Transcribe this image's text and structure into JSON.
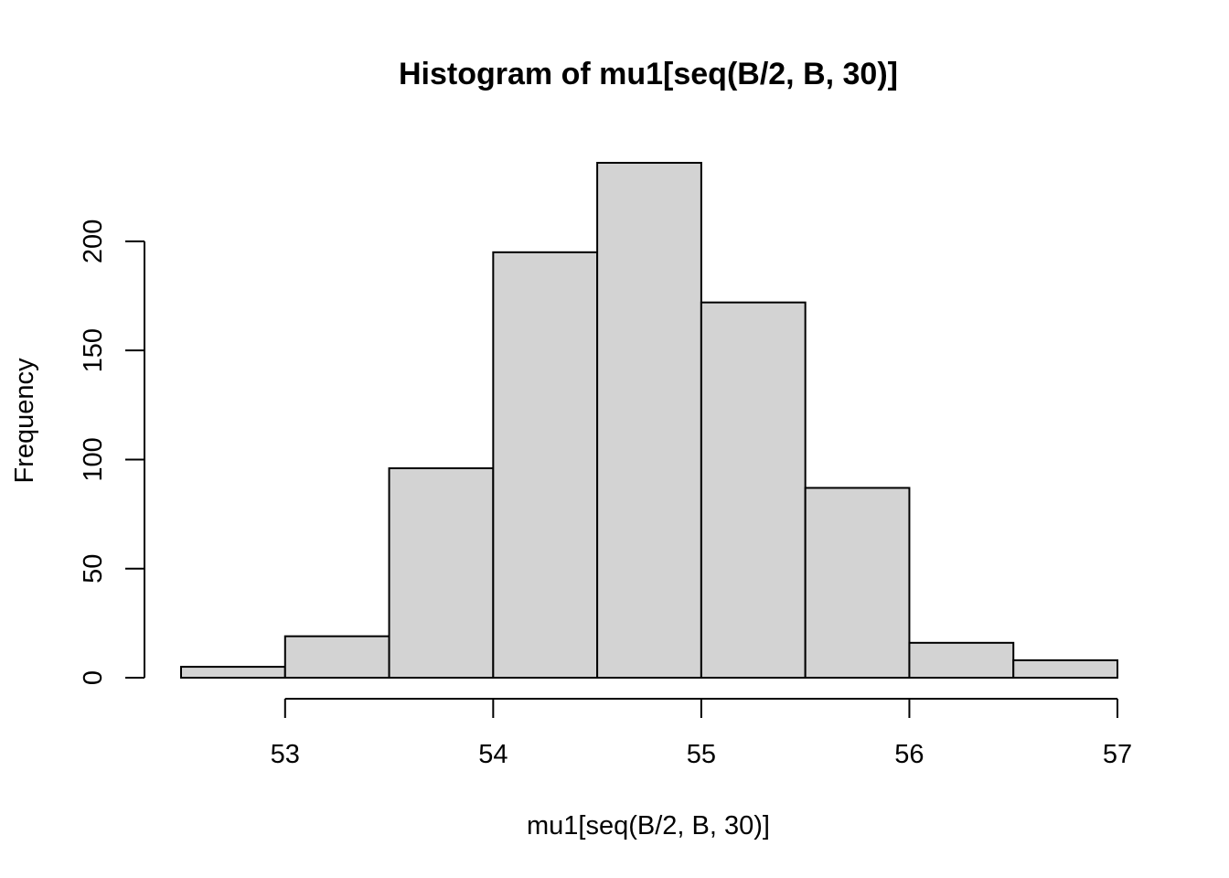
{
  "chart_data": {
    "type": "bar",
    "title": "Histogram of mu1[seq(B/2, B, 30)]",
    "xlabel": "mu1[seq(B/2, B, 30)]",
    "ylabel": "Frequency",
    "bin_edges": [
      52.5,
      53,
      53.5,
      54,
      54.5,
      55,
      55.5,
      56,
      56.5,
      57
    ],
    "values": [
      5,
      19,
      96,
      195,
      236,
      172,
      87,
      16,
      8
    ],
    "xlim": [
      52.5,
      57
    ],
    "ylim": [
      0,
      236
    ],
    "x_ticks": [
      53,
      54,
      55,
      56,
      57
    ],
    "y_ticks": [
      0,
      50,
      100,
      150,
      200
    ],
    "grid": false,
    "bar_color": "#d3d3d3",
    "edge_color": "#000000"
  }
}
